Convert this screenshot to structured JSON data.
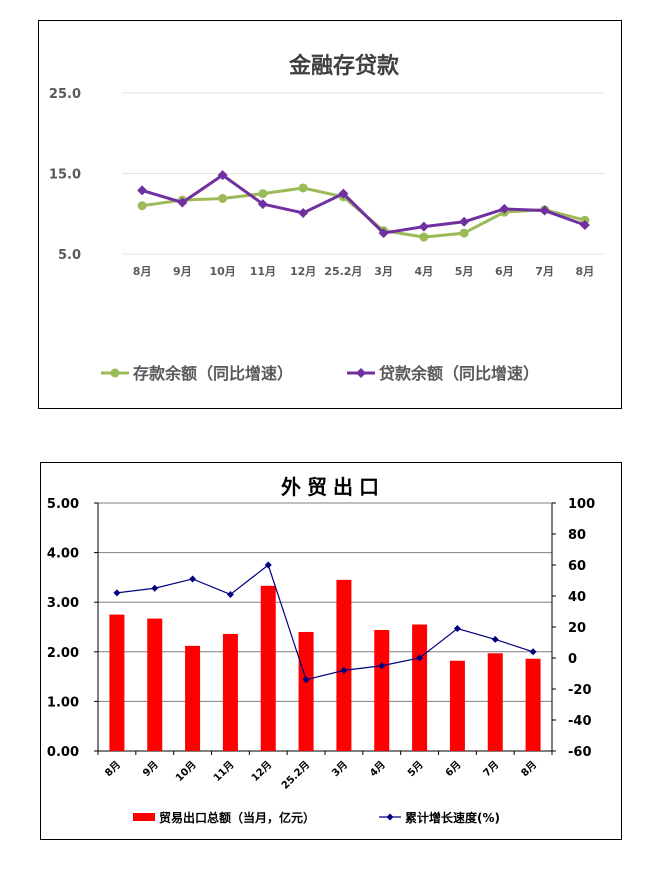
{
  "chart_data": [
    {
      "type": "line",
      "title": "金融存贷款",
      "categories": [
        "8月",
        "9月",
        "10月",
        "11月",
        "12月",
        "25.2月",
        "3月",
        "4月",
        "5月",
        "6月",
        "7月",
        "8月"
      ],
      "y_ticks": [
        "5.0",
        "15.0",
        "25.0"
      ],
      "ylim": [
        5,
        25
      ],
      "grid": true,
      "legend_position": "bottom",
      "series": [
        {
          "name": "存款余额（同比增速）",
          "color": "#9BBB59",
          "marker": "circle",
          "values": [
            11.0,
            11.7,
            11.9,
            12.5,
            13.2,
            12.1,
            7.9,
            7.1,
            7.6,
            10.2,
            10.5,
            9.2
          ]
        },
        {
          "name": "贷款余额（同比增速）",
          "color": "#7030A0",
          "marker": "diamond",
          "values": [
            12.9,
            11.4,
            14.8,
            11.2,
            10.1,
            12.5,
            7.6,
            8.4,
            9.0,
            10.6,
            10.4,
            8.6
          ]
        }
      ]
    },
    {
      "type": "bar",
      "title": "外贸出口",
      "categories": [
        "8月",
        "9月",
        "10月",
        "11月",
        "12月",
        "25.2月",
        "3月",
        "4月",
        "5月",
        "6月",
        "7月",
        "8月"
      ],
      "y_ticks": [
        "0.00",
        "1.00",
        "2.00",
        "3.00",
        "4.00",
        "5.00"
      ],
      "ylim": [
        0,
        5
      ],
      "y2_ticks": [
        "-60",
        "-40",
        "-20",
        "0",
        "20",
        "40",
        "60",
        "80",
        "100"
      ],
      "y2lim": [
        -60,
        100
      ],
      "grid": true,
      "legend_position": "bottom",
      "series": [
        {
          "name": "贸易出口总额（当月，亿元）",
          "type": "bar",
          "axis": "left",
          "color": "#FF0000",
          "values": [
            2.75,
            2.67,
            2.12,
            2.36,
            3.33,
            2.4,
            3.45,
            2.44,
            2.55,
            1.82,
            1.97,
            1.86
          ]
        },
        {
          "name": "累计增长速度(%)",
          "type": "line",
          "axis": "right",
          "color": "#000080",
          "marker": "diamond",
          "values": [
            42,
            45,
            51,
            41,
            60,
            -14,
            -8,
            -5,
            0,
            19,
            12,
            4
          ]
        }
      ]
    }
  ]
}
